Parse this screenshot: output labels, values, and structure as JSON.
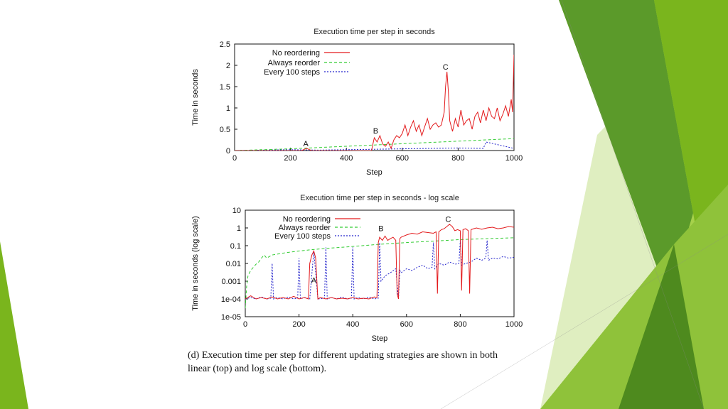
{
  "colors": {
    "no_reordering": "#e31a1c",
    "always_reorder": "#33cc33",
    "every_100_steps": "#2424cc",
    "green_dark": "#4e8a1e",
    "green_mid": "#7ab51d",
    "green_light": "#a6d14b",
    "green_pale": "#dfeec0"
  },
  "caption": {
    "line1": "(d) Execution time per step for different updating strategies are shown in both",
    "line2": "linear (top) and log scale (bottom)."
  },
  "chart_data": [
    {
      "type": "line",
      "title": "Execution time per step in seconds",
      "xlabel": "Step",
      "ylabel": "Time in seconds",
      "xlim": [
        0,
        1000
      ],
      "ylim": [
        0,
        2.5
      ],
      "xticks": [
        "0",
        "200",
        "400",
        "600",
        "800",
        "1000"
      ],
      "yticks": [
        "0",
        "0.5",
        "1",
        "1.5",
        "2",
        "2.5"
      ],
      "legend_position": "top-left",
      "grid": false,
      "annotations": [
        {
          "text": "A",
          "x": 255,
          "y": 0.1
        },
        {
          "text": "B",
          "x": 505,
          "y": 0.4
        },
        {
          "text": "C",
          "x": 755,
          "y": 1.9
        }
      ],
      "series": [
        {
          "name": "No reordering",
          "style": "solid",
          "color_key": "no_reordering",
          "x": [
            0,
            240,
            250,
            258,
            265,
            275,
            490,
            495,
            500,
            510,
            520,
            530,
            540,
            550,
            560,
            570,
            580,
            590,
            600,
            610,
            620,
            630,
            640,
            650,
            660,
            670,
            680,
            690,
            700,
            710,
            720,
            730,
            740,
            750,
            755,
            760,
            765,
            770,
            780,
            790,
            800,
            810,
            820,
            830,
            840,
            850,
            860,
            870,
            880,
            890,
            900,
            910,
            920,
            930,
            940,
            950,
            960,
            970,
            980,
            990,
            995,
            1000
          ],
          "y": [
            0,
            0,
            0.03,
            0.05,
            0.03,
            0,
            0,
            0.15,
            0.3,
            0.2,
            0.35,
            0.15,
            0.1,
            0.2,
            0.05,
            0.25,
            0.35,
            0.3,
            0.4,
            0.6,
            0.35,
            0.55,
            0.7,
            0.45,
            0.6,
            0.35,
            0.55,
            0.75,
            0.5,
            0.6,
            0.65,
            0.55,
            0.6,
            0.9,
            1.5,
            1.85,
            1.4,
            0.7,
            0.45,
            0.75,
            0.55,
            0.95,
            0.6,
            0.7,
            0.75,
            0.5,
            0.8,
            0.9,
            0.65,
            0.95,
            0.7,
            1.0,
            0.8,
            0.75,
            1.0,
            0.7,
            0.85,
            1.05,
            0.8,
            1.2,
            0.9,
            2.25
          ]
        },
        {
          "name": "Always reorder",
          "style": "dashed",
          "color_key": "always_reorder",
          "x": [
            0,
            100,
            200,
            300,
            400,
            500,
            600,
            700,
            800,
            900,
            1000
          ],
          "y": [
            0.0,
            0.02,
            0.04,
            0.07,
            0.1,
            0.13,
            0.16,
            0.19,
            0.22,
            0.25,
            0.28
          ]
        },
        {
          "name": "Every 100 steps",
          "style": "dotted",
          "color_key": "every_100_steps",
          "x": [
            0,
            100,
            200,
            300,
            400,
            500,
            600,
            700,
            800,
            890,
            900,
            1000
          ],
          "y": [
            0,
            0.01,
            0.02,
            0.01,
            0.02,
            0.03,
            0.04,
            0.05,
            0.06,
            0.05,
            0.2,
            0.05
          ]
        }
      ]
    },
    {
      "type": "line",
      "title": "Execution time per step in seconds - log scale",
      "xlabel": "Step",
      "ylabel": "Time in seconds (log scale)",
      "xlim": [
        0,
        1000
      ],
      "ylim": [
        1e-05,
        10
      ],
      "yscale": "log",
      "xticks": [
        "0",
        "200",
        "400",
        "600",
        "800",
        "1000"
      ],
      "yticks": [
        "1e-05",
        "1e-04",
        "0.001",
        "0.01",
        "0.1",
        "1",
        "10"
      ],
      "legend_position": "top-left",
      "grid": false,
      "annotations": [
        {
          "text": "A",
          "x": 255,
          "y": 0.0008
        },
        {
          "text": "B",
          "x": 505,
          "y": 0.65
        },
        {
          "text": "C",
          "x": 755,
          "y": 2.2
        }
      ],
      "series": [
        {
          "name": "No reordering",
          "style": "solid",
          "color_key": "no_reordering",
          "x": [
            0,
            20,
            40,
            60,
            80,
            100,
            120,
            140,
            160,
            180,
            200,
            220,
            235,
            240,
            248,
            255,
            262,
            270,
            280,
            300,
            320,
            340,
            360,
            380,
            400,
            420,
            440,
            460,
            480,
            490,
            495,
            500,
            510,
            520,
            530,
            540,
            550,
            560,
            565,
            570,
            575,
            580,
            590,
            600,
            620,
            640,
            660,
            680,
            700,
            710,
            715,
            720,
            725,
            730,
            740,
            760,
            770,
            780,
            790,
            800,
            805,
            810,
            820,
            830,
            835,
            840,
            850,
            860,
            880,
            900,
            920,
            940,
            960,
            980,
            1000
          ],
          "y": [
            0.0001,
            0.00015,
            0.0001,
            0.00012,
            0.0001,
            0.00013,
            0.0001,
            0.00012,
            0.0001,
            0.00014,
            0.0001,
            0.00012,
            0.0001,
            0.01,
            0.03,
            0.05,
            0.02,
            0.0001,
            0.00012,
            0.0001,
            0.00012,
            0.0001,
            0.00011,
            0.0001,
            0.00012,
            0.0001,
            0.00011,
            0.0001,
            0.00013,
            0.00012,
            0.15,
            0.3,
            0.2,
            0.35,
            0.2,
            0.25,
            0.3,
            0.2,
            0.0002,
            0.0001,
            0.25,
            0.3,
            0.35,
            0.4,
            0.5,
            0.45,
            0.6,
            0.55,
            0.5,
            0.6,
            0.0002,
            0.6,
            0.7,
            0.8,
            0.9,
            1.6,
            1.2,
            0.7,
            0.8,
            0.7,
            0.0003,
            0.8,
            0.9,
            0.7,
            0.0002,
            0.8,
            0.9,
            1.0,
            0.85,
            1.0,
            1.1,
            0.9,
            1.0,
            1.2,
            1.1
          ]
        },
        {
          "name": "Always reorder",
          "style": "dashed",
          "color_key": "always_reorder",
          "x": [
            0,
            5,
            10,
            20,
            30,
            40,
            50,
            60,
            70,
            80,
            100,
            150,
            200,
            250,
            300,
            400,
            500,
            600,
            700,
            800,
            900,
            1000
          ],
          "y": [
            3e-05,
            0.0005,
            0.002,
            0.004,
            0.006,
            0.009,
            0.012,
            0.02,
            0.03,
            0.02,
            0.03,
            0.04,
            0.05,
            0.06,
            0.07,
            0.09,
            0.12,
            0.15,
            0.18,
            0.22,
            0.25,
            0.28
          ]
        },
        {
          "name": "Every 100 steps",
          "style": "dotted",
          "color_key": "every_100_steps",
          "x": [
            0,
            20,
            40,
            60,
            80,
            95,
            100,
            105,
            120,
            140,
            160,
            180,
            195,
            200,
            205,
            220,
            240,
            255,
            270,
            295,
            300,
            305,
            320,
            340,
            360,
            380,
            395,
            400,
            405,
            420,
            440,
            460,
            480,
            495,
            500,
            505,
            520,
            540,
            560,
            570,
            575,
            580,
            600,
            620,
            640,
            660,
            680,
            695,
            700,
            705,
            720,
            740,
            760,
            780,
            795,
            800,
            805,
            820,
            840,
            860,
            880,
            895,
            900,
            905,
            920,
            940,
            960,
            980,
            1000
          ],
          "y": [
            0.0001,
            0.00012,
            0.0001,
            0.00013,
            0.0001,
            0.00011,
            0.01,
            0.0001,
            0.00012,
            0.0001,
            0.00013,
            0.0001,
            0.00011,
            0.02,
            0.0001,
            0.00012,
            0.0001,
            0.05,
            0.0001,
            0.00011,
            0.08,
            0.0001,
            0.00012,
            0.0001,
            0.00013,
            0.0001,
            0.00011,
            0.08,
            0.0001,
            0.00012,
            0.0001,
            0.00013,
            0.0001,
            0.00011,
            0.15,
            0.001,
            0.002,
            0.003,
            0.005,
            0.0001,
            0.004,
            0.003,
            0.005,
            0.004,
            0.006,
            0.008,
            0.005,
            0.006,
            0.15,
            0.005,
            0.01,
            0.008,
            0.012,
            0.009,
            0.01,
            0.2,
            0.008,
            0.01,
            0.012,
            0.02,
            0.015,
            0.02,
            0.2,
            0.015,
            0.02,
            0.018,
            0.025,
            0.02,
            0.022
          ]
        }
      ]
    }
  ]
}
